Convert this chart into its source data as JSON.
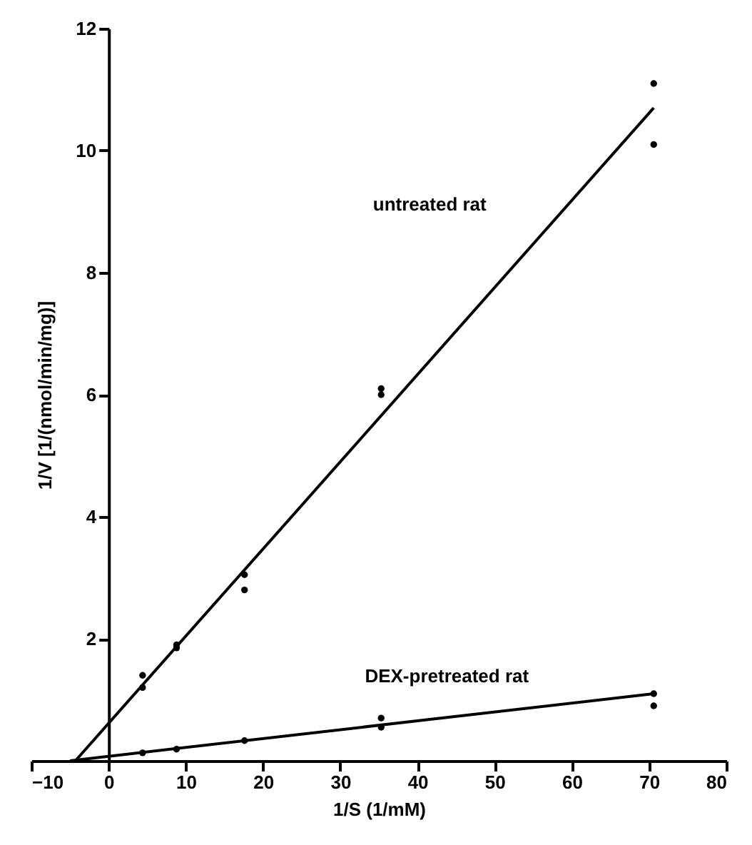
{
  "chart_data": {
    "type": "scatter",
    "xlabel": "1/S (1/mM)",
    "ylabel": "1/V [1/(nmol/min/mg)]",
    "xlim": [
      -10,
      80
    ],
    "ylim": [
      0,
      12
    ],
    "xticks": [
      -10,
      0,
      10,
      20,
      30,
      40,
      50,
      60,
      70,
      80
    ],
    "yticks": [
      2,
      4,
      6,
      8,
      10,
      12
    ],
    "marker": "circle",
    "line_style": "solid",
    "series": [
      {
        "type": "line",
        "marker": "none",
        "name": "untreated rat",
        "color": "#000000",
        "x": [
          -4.3,
          70.6
        ],
        "values": [
          0,
          10.7
        ]
      },
      {
        "type": "line",
        "marker": "none",
        "name": "DEX-pretreated rat",
        "color": "#000000",
        "x": [
          -5,
          70.6
        ],
        "values": [
          0,
          1.1
        ]
      },
      {
        "color": "#000000",
        "x": [
          4.4,
          4.4,
          8.8,
          8.8,
          17.6,
          17.6,
          35.3,
          35.3,
          70.6,
          70.6
        ],
        "values": [
          1.4,
          1.2,
          1.9,
          1.85,
          3.05,
          2.8,
          6.1,
          6.0,
          11.1,
          10.1
        ]
      },
      {
        "color": "#000000",
        "x": [
          4.4,
          8.8,
          17.6,
          35.3,
          35.3,
          70.6,
          70.6
        ],
        "values": [
          0.13,
          0.19,
          0.33,
          0.7,
          0.55,
          1.1,
          0.9
        ]
      }
    ]
  }
}
